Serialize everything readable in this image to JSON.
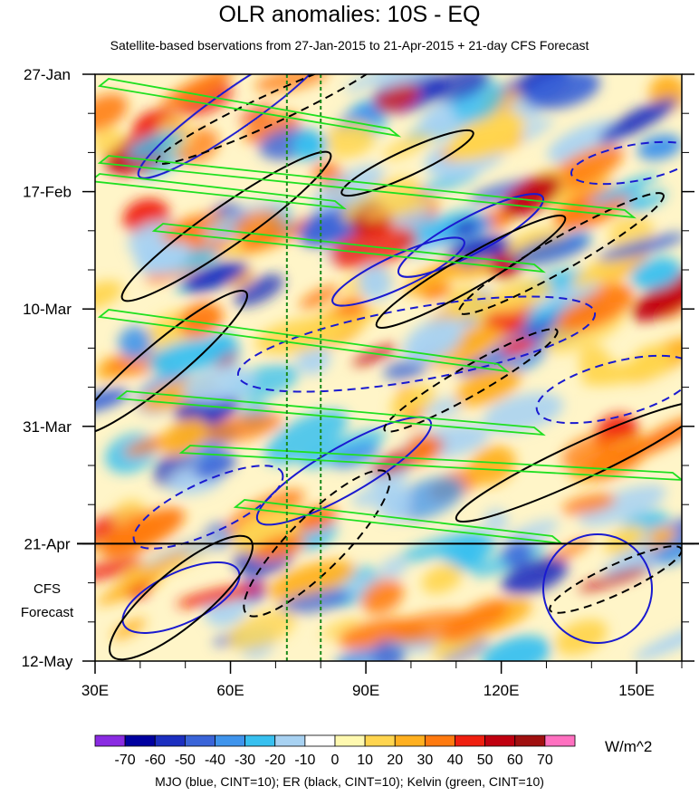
{
  "chart_data": {
    "type": "heatmap",
    "title": "OLR anomalies: 10S - EQ",
    "subtitle": "Satellite-based bservations from 27-Jan-2015 to 21-Apr-2015 + 21-day CFS Forecast",
    "x_tick_labels": [
      "30E",
      "60E",
      "90E",
      "120E",
      "150E"
    ],
    "x_ticks": [
      30,
      60,
      90,
      120,
      150
    ],
    "xlim": [
      30,
      160
    ],
    "y_tick_labels": [
      "27-Jan",
      "17-Feb",
      "10-Mar",
      "31-Mar",
      "21-Apr",
      "12-May"
    ],
    "y_ticks_days": [
      0,
      21,
      42,
      63,
      84,
      105
    ],
    "ylim_days": [
      0,
      105
    ],
    "forecast_start_day": 84,
    "forecast_label_line1": "CFS",
    "forecast_label_line2": "Forecast",
    "vertical_reference_lines_lon": [
      72.5,
      80
    ],
    "colorbar": {
      "units": "W/m^2",
      "levels": [
        -70,
        -60,
        -50,
        -40,
        -30,
        -20,
        -10,
        0,
        10,
        20,
        30,
        40,
        50,
        60,
        70
      ],
      "labels": [
        "-70",
        "-60",
        "-50",
        "-40",
        "-30",
        "-20",
        "-10",
        "0",
        "10",
        "20",
        "30",
        "40",
        "50",
        "60",
        "70"
      ],
      "colors": [
        "#8a2be2",
        "#0000a0",
        "#1c2fc0",
        "#3a64d8",
        "#3f94ec",
        "#38c0f0",
        "#a8d2f2",
        "#ffffff",
        "#fff9b0",
        "#ffd54f",
        "#ffb020",
        "#ff7a10",
        "#f02010",
        "#c00010",
        "#a01010",
        "#ff70c0"
      ]
    },
    "footer": "MJO (blue, CINT=10); ER (black, CINT=10); Kelvin (green, CINT=10)",
    "contour_colors": {
      "mjo": "#1a1ad0",
      "er": "#000000",
      "kelvin": "#20e020"
    }
  }
}
